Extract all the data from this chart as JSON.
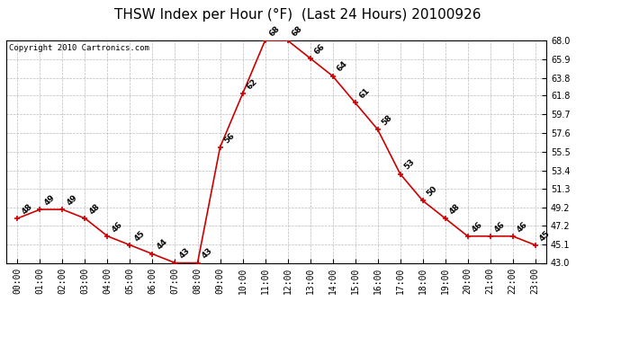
{
  "title": "THSW Index per Hour (°F)  (Last 24 Hours) 20100926",
  "copyright": "Copyright 2010 Cartronics.com",
  "hours": [
    0,
    1,
    2,
    3,
    4,
    5,
    6,
    7,
    8,
    9,
    10,
    11,
    12,
    13,
    14,
    15,
    16,
    17,
    18,
    19,
    20,
    21,
    22,
    23
  ],
  "hour_labels": [
    "00:00",
    "01:00",
    "02:00",
    "03:00",
    "04:00",
    "05:00",
    "06:00",
    "07:00",
    "08:00",
    "09:00",
    "10:00",
    "11:00",
    "12:00",
    "13:00",
    "14:00",
    "15:00",
    "16:00",
    "17:00",
    "18:00",
    "19:00",
    "20:00",
    "21:00",
    "22:00",
    "23:00"
  ],
  "values": [
    48,
    49,
    49,
    48,
    46,
    45,
    44,
    43,
    43,
    56,
    62,
    68,
    68,
    66,
    64,
    61,
    58,
    53,
    50,
    48,
    46,
    46,
    46,
    45
  ],
  "ylim_min": 43.0,
  "ylim_max": 68.0,
  "yticks": [
    43.0,
    45.1,
    47.2,
    49.2,
    51.3,
    53.4,
    55.5,
    57.6,
    59.7,
    61.8,
    63.8,
    65.9,
    68.0
  ],
  "line_color": "#cc0000",
  "marker_color": "#cc0000",
  "bg_color": "#ffffff",
  "plot_bg_color": "#ffffff",
  "grid_color": "#bbbbbb",
  "title_fontsize": 11,
  "copyright_fontsize": 6.5,
  "tick_fontsize": 7,
  "annotation_fontsize": 6.5
}
